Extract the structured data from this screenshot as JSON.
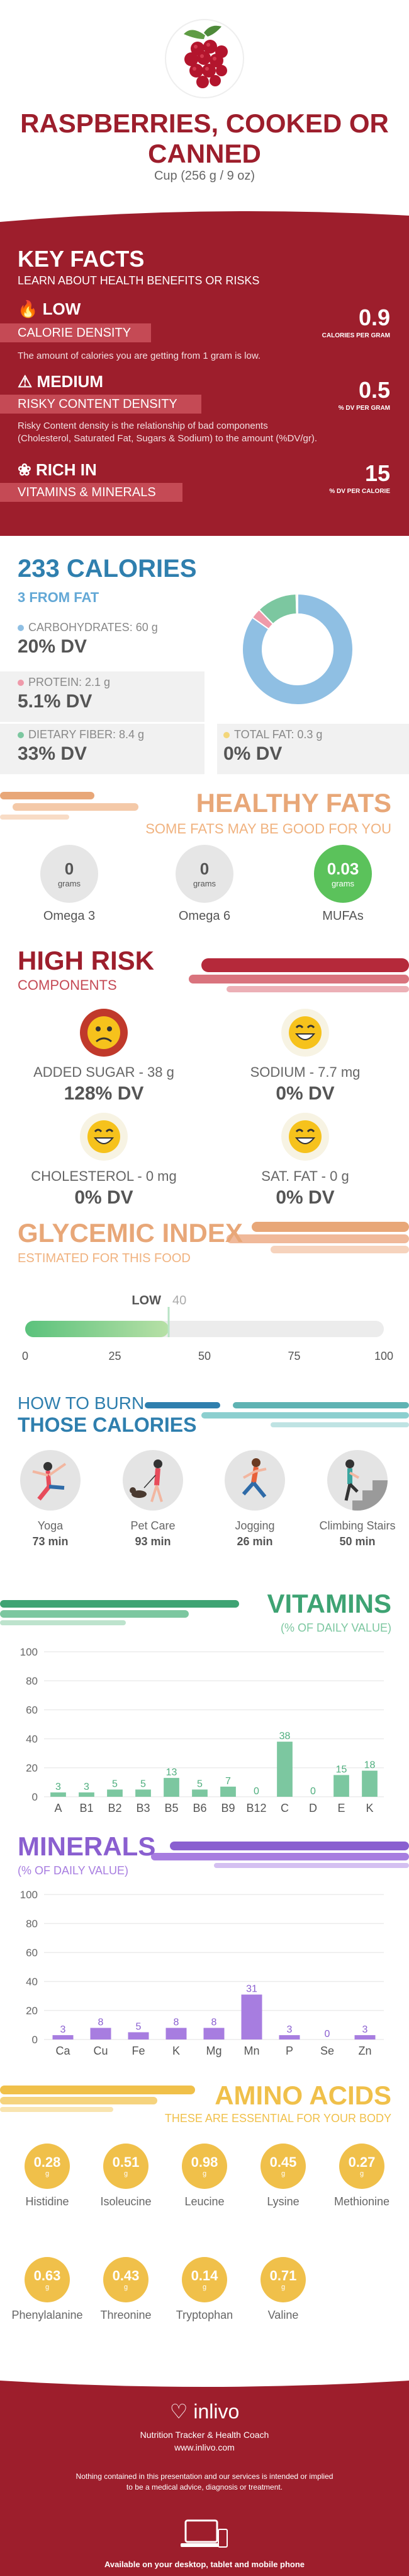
{
  "header": {
    "title_line1": "RASPBERRIES, COOKED OR",
    "title_line2": "CANNED",
    "serving": "Cup (256 g / 9 oz)"
  },
  "key_facts": {
    "title": "KEY FACTS",
    "subtitle": "LEARN ABOUT HEALTH BENEFITS OR RISKS",
    "calorie_density": {
      "level": "LOW",
      "label": "CALORIE DENSITY",
      "desc": "The amount of calories you are getting from 1 gram is low.",
      "value": "0.9",
      "unit": "CALORIES PER GRAM",
      "icon": "flame-icon"
    },
    "risky_density": {
      "level": "MEDIUM",
      "label": "RISKY CONTENT DENSITY",
      "desc_line1": "Risky Content density is the relationship of bad components",
      "desc_line2": "(Cholesterol, Saturated Fat, Sugars & Sodium) to the amount (%DV/gr).",
      "value": "0.5",
      "unit": "% DV PER GRAM",
      "icon": "warning-icon"
    },
    "rich_in": {
      "level": "RICH IN",
      "label": "VITAMINS & MINERALS",
      "value": "15",
      "unit": "% DV PER CALORIE",
      "icon": "leaf-icon"
    }
  },
  "calories": {
    "title": "233 CALORIES",
    "from_fat": "3 FROM FAT",
    "carbs": {
      "label": "CARBOHYDRATES: 60 g",
      "dv": "20% DV",
      "color": "#8fbfe3"
    },
    "protein": {
      "label": "PROTEIN: 2.1 g",
      "dv": "5.1% DV",
      "color": "#ef9aaa"
    },
    "fiber": {
      "label": "DIETARY FIBER: 8.4 g",
      "dv": "33% DV",
      "color": "#7cc7a0"
    },
    "fat": {
      "label": "TOTAL FAT: 0.3 g",
      "dv": "0% DV",
      "color": "#f3d67a"
    },
    "donut": {
      "carbs": 60,
      "protein": 2.1,
      "fiber": 8.4,
      "fat": 0.3
    }
  },
  "healthy_fats": {
    "title": "HEALTHY FATS",
    "subtitle": "SOME FATS MAY BE GOOD FOR YOU",
    "items": [
      {
        "value": "0",
        "unit": "grams",
        "name": "Omega 3"
      },
      {
        "value": "0",
        "unit": "grams",
        "name": "Omega 6"
      },
      {
        "value": "0.03",
        "unit": "grams",
        "name": "MUFAs"
      }
    ]
  },
  "high_risk": {
    "title": "HIGH RISK",
    "subtitle": "COMPONENTS",
    "items": [
      {
        "label": "ADDED SUGAR - 38 g",
        "dv": "128% DV",
        "face": "worried-face-icon"
      },
      {
        "label": "SODIUM - 7.7 mg",
        "dv": "0% DV",
        "face": "smile-face-icon"
      },
      {
        "label": "CHOLESTEROL - 0 mg",
        "dv": "0% DV",
        "face": "smile-face-icon"
      },
      {
        "label": "SAT. FAT - 0 g",
        "dv": "0% DV",
        "face": "smile-face-icon"
      }
    ]
  },
  "glycemic": {
    "title": "GLYCEMIC INDEX",
    "subtitle": "ESTIMATED FOR THIS FOOD",
    "level": "LOW",
    "value": 40,
    "value_label": "40",
    "ticks": [
      "0",
      "25",
      "50",
      "75",
      "100"
    ]
  },
  "burn": {
    "title_line1": "HOW TO BURN",
    "title_line2": "THOSE CALORIES",
    "activities": [
      {
        "name": "Yoga",
        "minutes": "73 min",
        "icon": "yoga-icon"
      },
      {
        "name": "Pet Care",
        "minutes": "93 min",
        "icon": "pet-care-icon"
      },
      {
        "name": "Jogging",
        "minutes": "26 min",
        "icon": "jogging-icon"
      },
      {
        "name": "Climbing Stairs",
        "minutes": "50 min",
        "icon": "climbing-stairs-icon"
      }
    ]
  },
  "vitamins": {
    "title": "VITAMINS",
    "subtitle": "(% OF DAILY VALUE)"
  },
  "minerals": {
    "title": "MINERALS",
    "subtitle": "(% OF DAILY VALUE)"
  },
  "chart_data": [
    {
      "type": "bar",
      "title": "VITAMINS",
      "subtitle": "(% OF DAILY VALUE)",
      "categories": [
        "A",
        "B1",
        "B2",
        "B3",
        "B5",
        "B6",
        "B9",
        "B12",
        "C",
        "D",
        "E",
        "K"
      ],
      "values": [
        3,
        3,
        5,
        5,
        13,
        5,
        7,
        0,
        38,
        0,
        15,
        18
      ],
      "ylim": [
        0,
        100
      ],
      "yticks": [
        "0",
        "20",
        "40",
        "60",
        "80",
        "100"
      ],
      "grid": true,
      "color": "#7cc7a0",
      "label_color": "#4fae7e"
    },
    {
      "type": "bar",
      "title": "MINERALS",
      "subtitle": "(% OF DAILY VALUE)",
      "categories": [
        "Ca",
        "Cu",
        "Fe",
        "K",
        "Mg",
        "Mn",
        "P",
        "Se",
        "Zn"
      ],
      "values": [
        3,
        8,
        5,
        8,
        8,
        31,
        3,
        0,
        3
      ],
      "ylim": [
        0,
        100
      ],
      "yticks": [
        "0",
        "20",
        "40",
        "60",
        "80",
        "100"
      ],
      "grid": true,
      "color": "#a77de0",
      "label_color": "#8a5fd0"
    }
  ],
  "amino": {
    "title": "AMINO ACIDS",
    "subtitle": "THESE ARE ESSENTIAL FOR YOUR BODY",
    "items": [
      {
        "value": "0.28",
        "unit": "g",
        "name": "Histidine"
      },
      {
        "value": "0.51",
        "unit": "g",
        "name": "Isoleucine"
      },
      {
        "value": "0.98",
        "unit": "g",
        "name": "Leucine"
      },
      {
        "value": "0.45",
        "unit": "g",
        "name": "Lysine"
      },
      {
        "value": "0.27",
        "unit": "g",
        "name": "Methionine"
      },
      {
        "value": "0.63",
        "unit": "g",
        "name": "Phenylalanine"
      },
      {
        "value": "0.43",
        "unit": "g",
        "name": "Threonine"
      },
      {
        "value": "0.14",
        "unit": "g",
        "name": "Tryptophan"
      },
      {
        "value": "0.71",
        "unit": "g",
        "name": "Valine"
      }
    ]
  },
  "footer": {
    "brand": "inlivo",
    "tagline": "Nutrition Tracker & Health Coach",
    "url": "www.inlivo.com",
    "disclaimer_line1": "Nothing contained in this presentation and our services is intended or implied",
    "disclaimer_line2": "to be a medical advice, diagnosis or treatment.",
    "available": "Available on your desktop, tablet and mobile phone"
  }
}
